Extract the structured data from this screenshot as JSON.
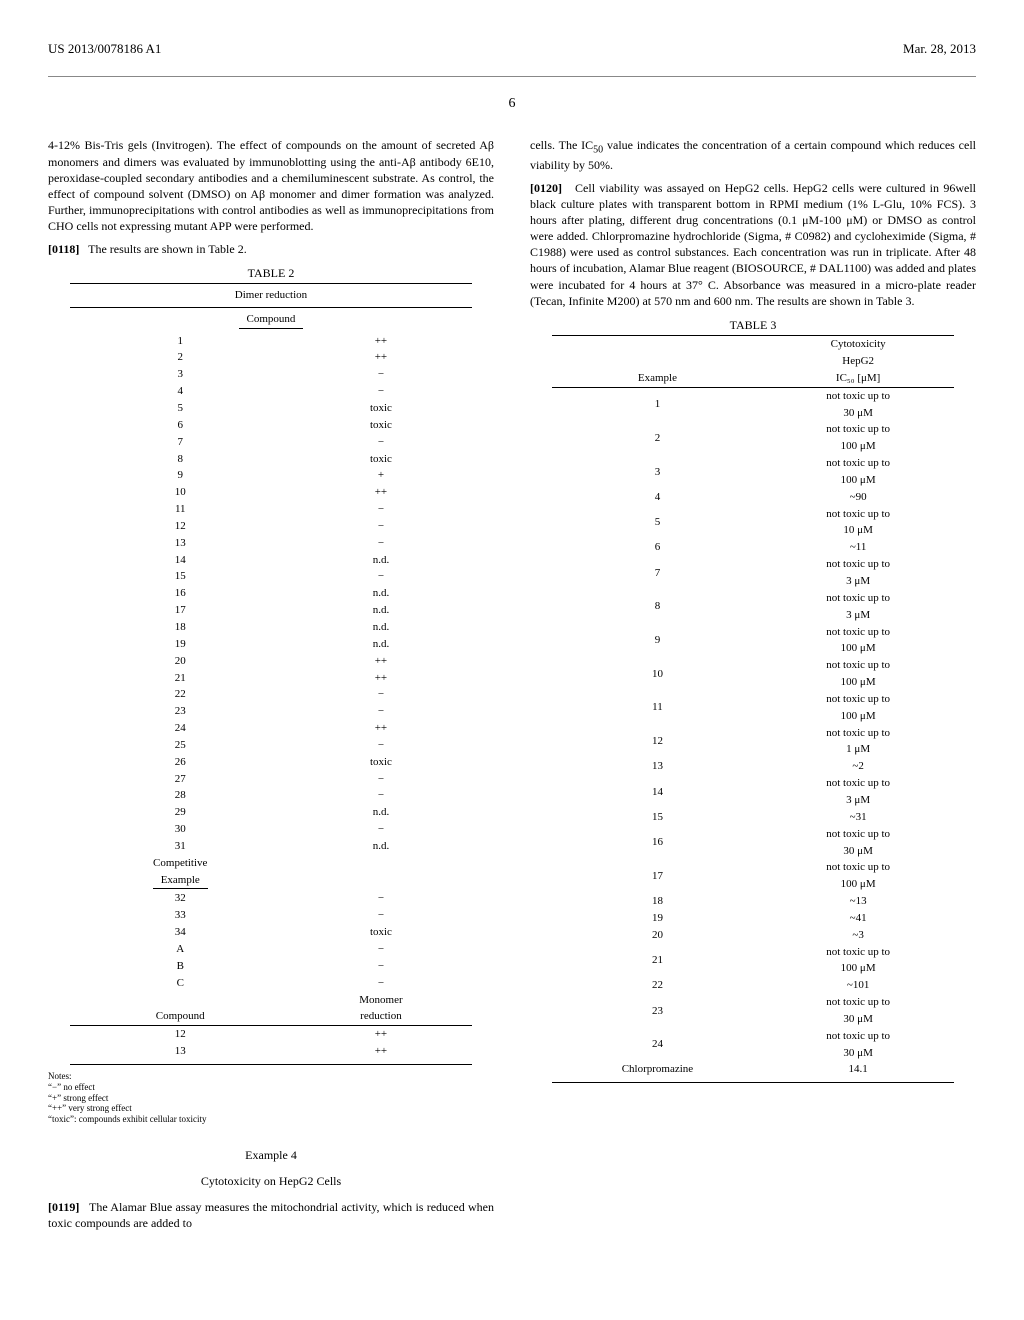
{
  "header": {
    "pub_number": "US 2013/0078186 A1",
    "pub_date": "Mar. 28, 2013",
    "page_number": "6"
  },
  "left": {
    "para1": "4-12% Bis-Tris gels (Invitrogen). The effect of compounds on the amount of secreted Aβ monomers and dimers was evaluated by immunoblotting using the anti-Aβ antibody 6E10, peroxidase-coupled secondary antibodies and a chemiluminescent substrate. As control, the effect of compound solvent (DMSO) on Aβ monomer and dimer formation was analyzed. Further, immunoprecipitations with control antibodies as well as immunoprecipitations from CHO cells not expressing mutant APP were performed.",
    "para2_num": "[0118]",
    "para2": "The results are shown in Table 2.",
    "table2": {
      "caption": "TABLE 2",
      "title": "Dimer reduction",
      "col_header": "Compound",
      "rows": [
        [
          "1",
          "++"
        ],
        [
          "2",
          "++"
        ],
        [
          "3",
          "−"
        ],
        [
          "4",
          "−"
        ],
        [
          "5",
          "toxic"
        ],
        [
          "6",
          "toxic"
        ],
        [
          "7",
          "−"
        ],
        [
          "8",
          "toxic"
        ],
        [
          "9",
          "+"
        ],
        [
          "10",
          "++"
        ],
        [
          "11",
          "−"
        ],
        [
          "12",
          "−"
        ],
        [
          "13",
          "−"
        ],
        [
          "14",
          "n.d."
        ],
        [
          "15",
          "−"
        ],
        [
          "16",
          "n.d."
        ],
        [
          "17",
          "n.d."
        ],
        [
          "18",
          "n.d."
        ],
        [
          "19",
          "n.d."
        ],
        [
          "20",
          "++"
        ],
        [
          "21",
          "++"
        ],
        [
          "22",
          "−"
        ],
        [
          "23",
          "−"
        ],
        [
          "24",
          "++"
        ],
        [
          "25",
          "−"
        ],
        [
          "26",
          "toxic"
        ],
        [
          "27",
          "−"
        ],
        [
          "28",
          "−"
        ],
        [
          "29",
          "n.d."
        ],
        [
          "30",
          "−"
        ],
        [
          "31",
          "n.d."
        ]
      ],
      "subheader1": "Competitive",
      "subheader2": "Example",
      "rows2": [
        [
          "32",
          "−"
        ],
        [
          "33",
          "−"
        ],
        [
          "34",
          "toxic"
        ],
        [
          "A",
          "−"
        ],
        [
          "B",
          "−"
        ],
        [
          "C",
          "−"
        ]
      ],
      "mono_header1": "Compound",
      "mono_header2": "Monomer",
      "mono_header3": "reduction",
      "rows3": [
        [
          "12",
          "++"
        ],
        [
          "13",
          "++"
        ]
      ],
      "notes_label": "Notes:",
      "note1": "“−” no effect",
      "note2": "“+” strong effect",
      "note3": "“++” very strong effect",
      "note4": "“toxic”: compounds exhibit cellular toxicity"
    },
    "example4_heading": "Example 4",
    "example4_sub": "Cytotoxicity on HepG2 Cells",
    "para3_num": "[0119]",
    "para3": "The Alamar Blue assay measures the mitochondrial activity, which is reduced when toxic compounds are added to"
  },
  "right": {
    "para1a": "cells. The IC",
    "para1b": " value indicates the concentration of a certain compound which reduces cell viability by 50%.",
    "para2_num": "[0120]",
    "para2": "Cell viability was assayed on HepG2 cells. HepG2 cells were cultured in 96well black culture plates with transparent bottom in RPMI medium (1% L-Glu, 10% FCS). 3 hours after plating, different drug concentrations (0.1 μM-100 μM) or DMSO as control were added. Chlorpromazine hydrochloride (Sigma, # C0982) and cycloheximide (Sigma, # C1988) were used as control substances. Each concentration was run in triplicate. After 48 hours of incubation, Alamar Blue reagent (BIOSOURCE, # DAL1100) was added and plates were incubated for 4 hours at 37° C. Absorbance was measured in a micro-plate reader (Tecan, Infinite M200) at 570 nm and 600 nm. The results are shown in Table 3.",
    "table3": {
      "caption": "TABLE 3",
      "h1": "Example",
      "h2a": "Cytotoxicity",
      "h2b": "HepG2",
      "h2c": "IC₅₀ [μM]",
      "rows": [
        [
          "1",
          "not toxic up to",
          "30 μM"
        ],
        [
          "2",
          "not toxic up to",
          "100 μM"
        ],
        [
          "3",
          "not toxic up to",
          "100 μM"
        ],
        [
          "4",
          "~90",
          ""
        ],
        [
          "5",
          "not toxic up to",
          "10 μM"
        ],
        [
          "6",
          "~11",
          ""
        ],
        [
          "7",
          "not toxic up to",
          "3 μM"
        ],
        [
          "8",
          "not toxic up to",
          "3 μM"
        ],
        [
          "9",
          "not toxic up to",
          "100 μM"
        ],
        [
          "10",
          "not toxic up to",
          "100 μM"
        ],
        [
          "11",
          "not toxic up to",
          "100 μM"
        ],
        [
          "12",
          "not toxic up to",
          "1 μM"
        ],
        [
          "13",
          "~2",
          ""
        ],
        [
          "14",
          "not toxic up to",
          "3 μM"
        ],
        [
          "15",
          "~31",
          ""
        ],
        [
          "16",
          "not toxic up to",
          "30 μM"
        ],
        [
          "17",
          "not toxic up to",
          "100 μM"
        ],
        [
          "18",
          "~13",
          ""
        ],
        [
          "19",
          "~41",
          ""
        ],
        [
          "20",
          "~3",
          ""
        ],
        [
          "21",
          "not toxic up to",
          "100 μM"
        ],
        [
          "22",
          "~101",
          ""
        ],
        [
          "23",
          "not toxic up to",
          "30 μM"
        ],
        [
          "24",
          "not toxic up to",
          "30 μM"
        ],
        [
          "Chlorpromazine",
          "14.1",
          ""
        ]
      ]
    }
  }
}
